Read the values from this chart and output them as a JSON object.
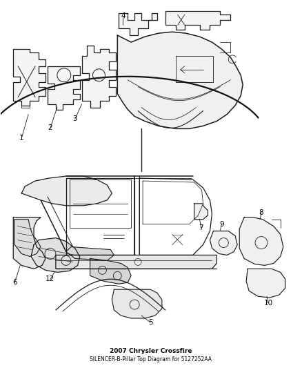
{
  "title": "2007 Chrysler Crossfire",
  "subtitle": "SILENCER-B-Pillar Top Diagram for 5127252AA",
  "background_color": "#ffffff",
  "line_color": "#1a1a1a",
  "label_color": "#000000",
  "title_fontsize": 6.5,
  "label_fontsize": 7.5,
  "fig_width": 4.38,
  "fig_height": 5.33,
  "dpi": 100
}
